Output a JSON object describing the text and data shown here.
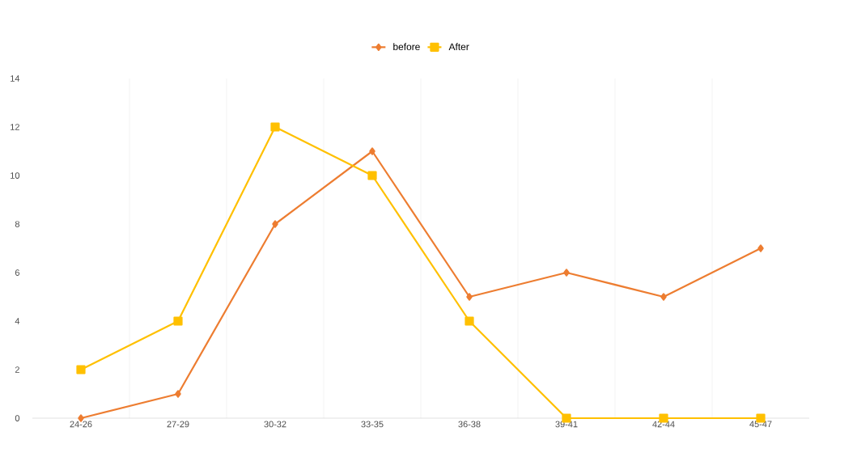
{
  "chart_data": {
    "type": "line",
    "categories": [
      "24-26",
      "27-29",
      "30-32",
      "33-35",
      "36-38",
      "39-41",
      "42-44",
      "45-47"
    ],
    "series": [
      {
        "name": "before",
        "color": "#ed7d31",
        "marker": "diamond",
        "values": [
          0,
          1,
          8,
          11,
          5,
          6,
          5,
          7
        ]
      },
      {
        "name": "After",
        "color": "#ffc000",
        "marker": "square",
        "values": [
          2,
          4,
          12,
          10,
          4,
          0,
          0,
          0
        ]
      }
    ],
    "ylim": [
      0,
      14
    ],
    "yticks": [
      0,
      2,
      4,
      6,
      8,
      10,
      12,
      14
    ],
    "grid": "x",
    "legend": "top",
    "line_style": "solid"
  }
}
